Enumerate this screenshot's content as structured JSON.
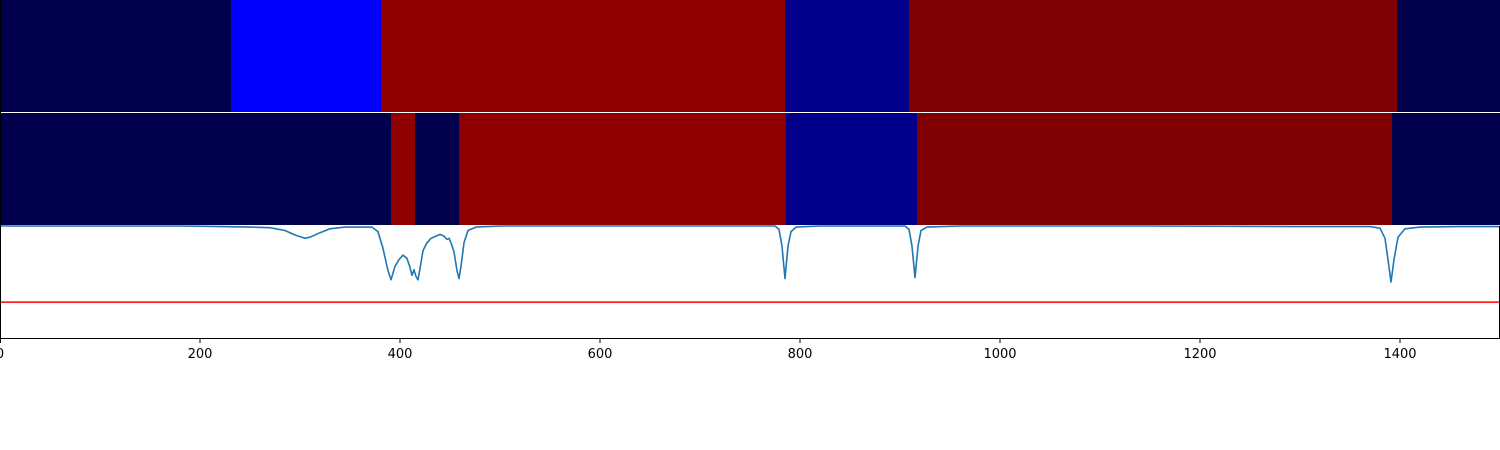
{
  "chart_data": {
    "type": "heatmap",
    "title": "",
    "xlabel": "",
    "ylabel": "",
    "xlim": [
      0,
      1500
    ],
    "x_ticks": [
      {
        "value": 0,
        "label": "0"
      },
      {
        "value": 200,
        "label": "200"
      },
      {
        "value": 400,
        "label": "400"
      },
      {
        "value": 600,
        "label": "600"
      },
      {
        "value": 800,
        "label": "800"
      },
      {
        "value": 1000,
        "label": "1000"
      },
      {
        "value": 1200,
        "label": "1200"
      },
      {
        "value": 1400,
        "label": "1400"
      }
    ],
    "grid": false,
    "legend": "none",
    "segment_rows": [
      {
        "segments": [
          {
            "start": 0,
            "end": 231,
            "color": "#00004c"
          },
          {
            "start": 231,
            "end": 381,
            "color": "#0000ff"
          },
          {
            "start": 381,
            "end": 785,
            "color": "#8f0000"
          },
          {
            "start": 785,
            "end": 909,
            "color": "#00008a"
          },
          {
            "start": 909,
            "end": 1397,
            "color": "#7e0000"
          },
          {
            "start": 1397,
            "end": 1500,
            "color": "#00004c"
          }
        ]
      },
      {
        "segments": [
          {
            "start": 0,
            "end": 391,
            "color": "#00004c"
          },
          {
            "start": 391,
            "end": 415,
            "color": "#8f0000"
          },
          {
            "start": 415,
            "end": 459,
            "color": "#00004c"
          },
          {
            "start": 459,
            "end": 786,
            "color": "#8f0000"
          },
          {
            "start": 786,
            "end": 917,
            "color": "#00008a"
          },
          {
            "start": 917,
            "end": 1392,
            "color": "#7e0000"
          },
          {
            "start": 1392,
            "end": 1500,
            "color": "#00004c"
          }
        ]
      }
    ],
    "line_panel": {
      "ylim": [
        0,
        1
      ],
      "threshold": 0.32,
      "threshold_color": "#ff0000",
      "series": [
        {
          "color": "#1f77b4",
          "points": [
            [
              0,
              1.0
            ],
            [
              180,
              1.0
            ],
            [
              220,
              0.995
            ],
            [
              250,
              0.99
            ],
            [
              270,
              0.985
            ],
            [
              285,
              0.96
            ],
            [
              295,
              0.92
            ],
            [
              305,
              0.89
            ],
            [
              310,
              0.9
            ],
            [
              320,
              0.94
            ],
            [
              330,
              0.975
            ],
            [
              345,
              0.99
            ],
            [
              372,
              0.99
            ],
            [
              378,
              0.95
            ],
            [
              383,
              0.8
            ],
            [
              388,
              0.6
            ],
            [
              391,
              0.52
            ],
            [
              395,
              0.64
            ],
            [
              399,
              0.7
            ],
            [
              403,
              0.74
            ],
            [
              407,
              0.71
            ],
            [
              410,
              0.63
            ],
            [
              412,
              0.56
            ],
            [
              414,
              0.61
            ],
            [
              416,
              0.55
            ],
            [
              418,
              0.52
            ],
            [
              420,
              0.62
            ],
            [
              423,
              0.78
            ],
            [
              427,
              0.85
            ],
            [
              431,
              0.89
            ],
            [
              436,
              0.91
            ],
            [
              440,
              0.925
            ],
            [
              444,
              0.91
            ],
            [
              447,
              0.88
            ],
            [
              449,
              0.89
            ],
            [
              451,
              0.85
            ],
            [
              454,
              0.77
            ],
            [
              457,
              0.6
            ],
            [
              459,
              0.53
            ],
            [
              461,
              0.64
            ],
            [
              464,
              0.85
            ],
            [
              468,
              0.96
            ],
            [
              476,
              0.99
            ],
            [
              500,
              1.0
            ],
            [
              775,
              1.0
            ],
            [
              779,
              0.97
            ],
            [
              782,
              0.82
            ],
            [
              785,
              0.53
            ],
            [
              788,
              0.82
            ],
            [
              791,
              0.95
            ],
            [
              796,
              0.99
            ],
            [
              820,
              1.0
            ],
            [
              905,
              1.0
            ],
            [
              909,
              0.97
            ],
            [
              912,
              0.82
            ],
            [
              915,
              0.54
            ],
            [
              918,
              0.82
            ],
            [
              921,
              0.96
            ],
            [
              927,
              0.99
            ],
            [
              960,
              1.0
            ],
            [
              1150,
              1.0
            ],
            [
              1300,
              0.995
            ],
            [
              1370,
              0.995
            ],
            [
              1380,
              0.98
            ],
            [
              1385,
              0.89
            ],
            [
              1388,
              0.7
            ],
            [
              1391,
              0.5
            ],
            [
              1394,
              0.7
            ],
            [
              1398,
              0.9
            ],
            [
              1405,
              0.975
            ],
            [
              1420,
              0.99
            ],
            [
              1460,
              0.995
            ],
            [
              1500,
              0.995
            ]
          ]
        }
      ]
    }
  }
}
